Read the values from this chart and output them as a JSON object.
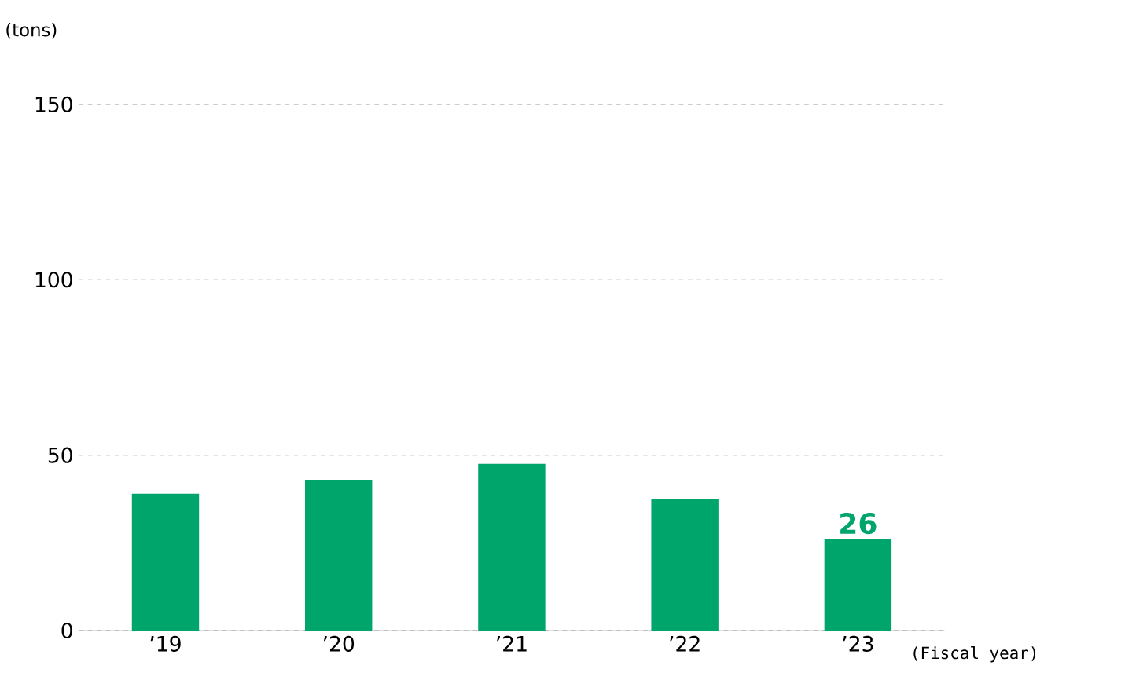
{
  "chart_data": {
    "type": "bar",
    "ylabel": "(tons)",
    "xlabel": "(Fiscal year)",
    "categories": [
      "’19",
      "’20",
      "’21",
      "’22",
      "’23"
    ],
    "values": [
      39,
      43,
      47.5,
      37.5,
      26
    ],
    "value_labels": [
      null,
      null,
      null,
      null,
      "26"
    ],
    "color": "#00a56b",
    "ylim": [
      0,
      150
    ],
    "yticks": [
      0,
      50,
      100,
      150
    ],
    "grid": "y"
  }
}
